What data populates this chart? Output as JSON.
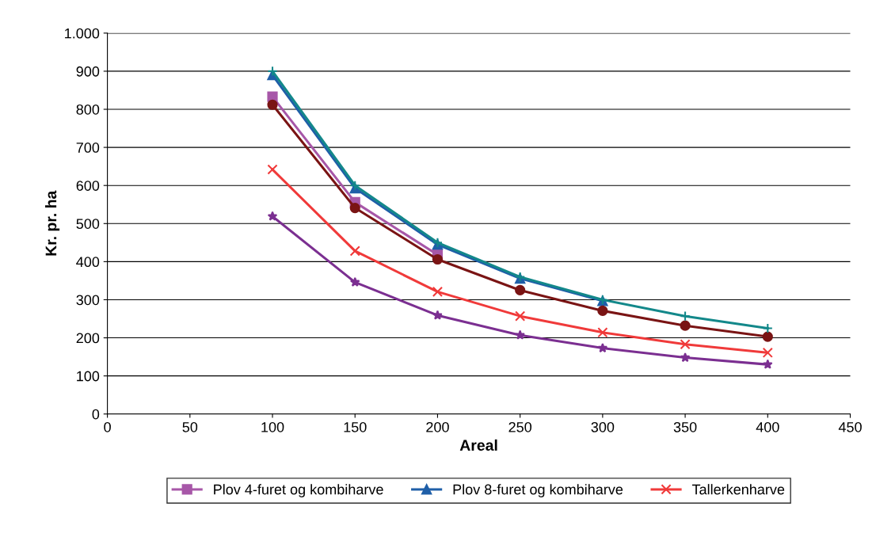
{
  "chart_data": {
    "type": "line",
    "xlabel": "Areal",
    "ylabel": "Kr. pr. ha",
    "xlim": [
      0,
      450
    ],
    "xticks": [
      0,
      50,
      100,
      150,
      200,
      250,
      300,
      350,
      400,
      450
    ],
    "ylim": [
      0,
      1000
    ],
    "yticks": [
      0,
      100,
      200,
      300,
      400,
      500,
      600,
      700,
      800,
      900,
      {
        "value": 1000,
        "label": "1.000"
      }
    ],
    "grid": "y",
    "legend": "bottom",
    "series": [
      {
        "name": "Plov 4-furet og kombiharve",
        "color": "#a757a8",
        "marker": "square",
        "x": [
          100,
          150,
          200
        ],
        "values": [
          833,
          556,
          418
        ]
      },
      {
        "name": "Plov 8-furet og kombiharve",
        "color": "#1f5fa8",
        "marker": "triangle",
        "x": [
          100,
          150,
          200,
          250,
          300
        ],
        "values": [
          890,
          593,
          445,
          356,
          297
        ]
      },
      {
        "name": "Tallerkenharve",
        "color": "#f03a3a",
        "marker": "cross",
        "x": [
          100,
          150,
          200,
          250,
          300,
          350,
          400
        ],
        "values": [
          642,
          428,
          321,
          257,
          214,
          183,
          161
        ]
      },
      {
        "color": "#7b2f91",
        "marker": "star",
        "x": [
          100,
          150,
          200,
          250,
          300,
          350,
          400
        ],
        "values": [
          519,
          346,
          259,
          207,
          173,
          148,
          130
        ]
      },
      {
        "color": "#7a1414",
        "marker": "circle",
        "x": [
          100,
          150,
          200,
          250,
          300,
          350,
          400
        ],
        "values": [
          812,
          541,
          406,
          325,
          271,
          232,
          203
        ]
      },
      {
        "color": "#13888a",
        "marker": "plus",
        "x": [
          100,
          150,
          200,
          250,
          300,
          350,
          400
        ],
        "values": [
          900,
          600,
          450,
          360,
          300,
          257,
          225
        ]
      }
    ]
  }
}
